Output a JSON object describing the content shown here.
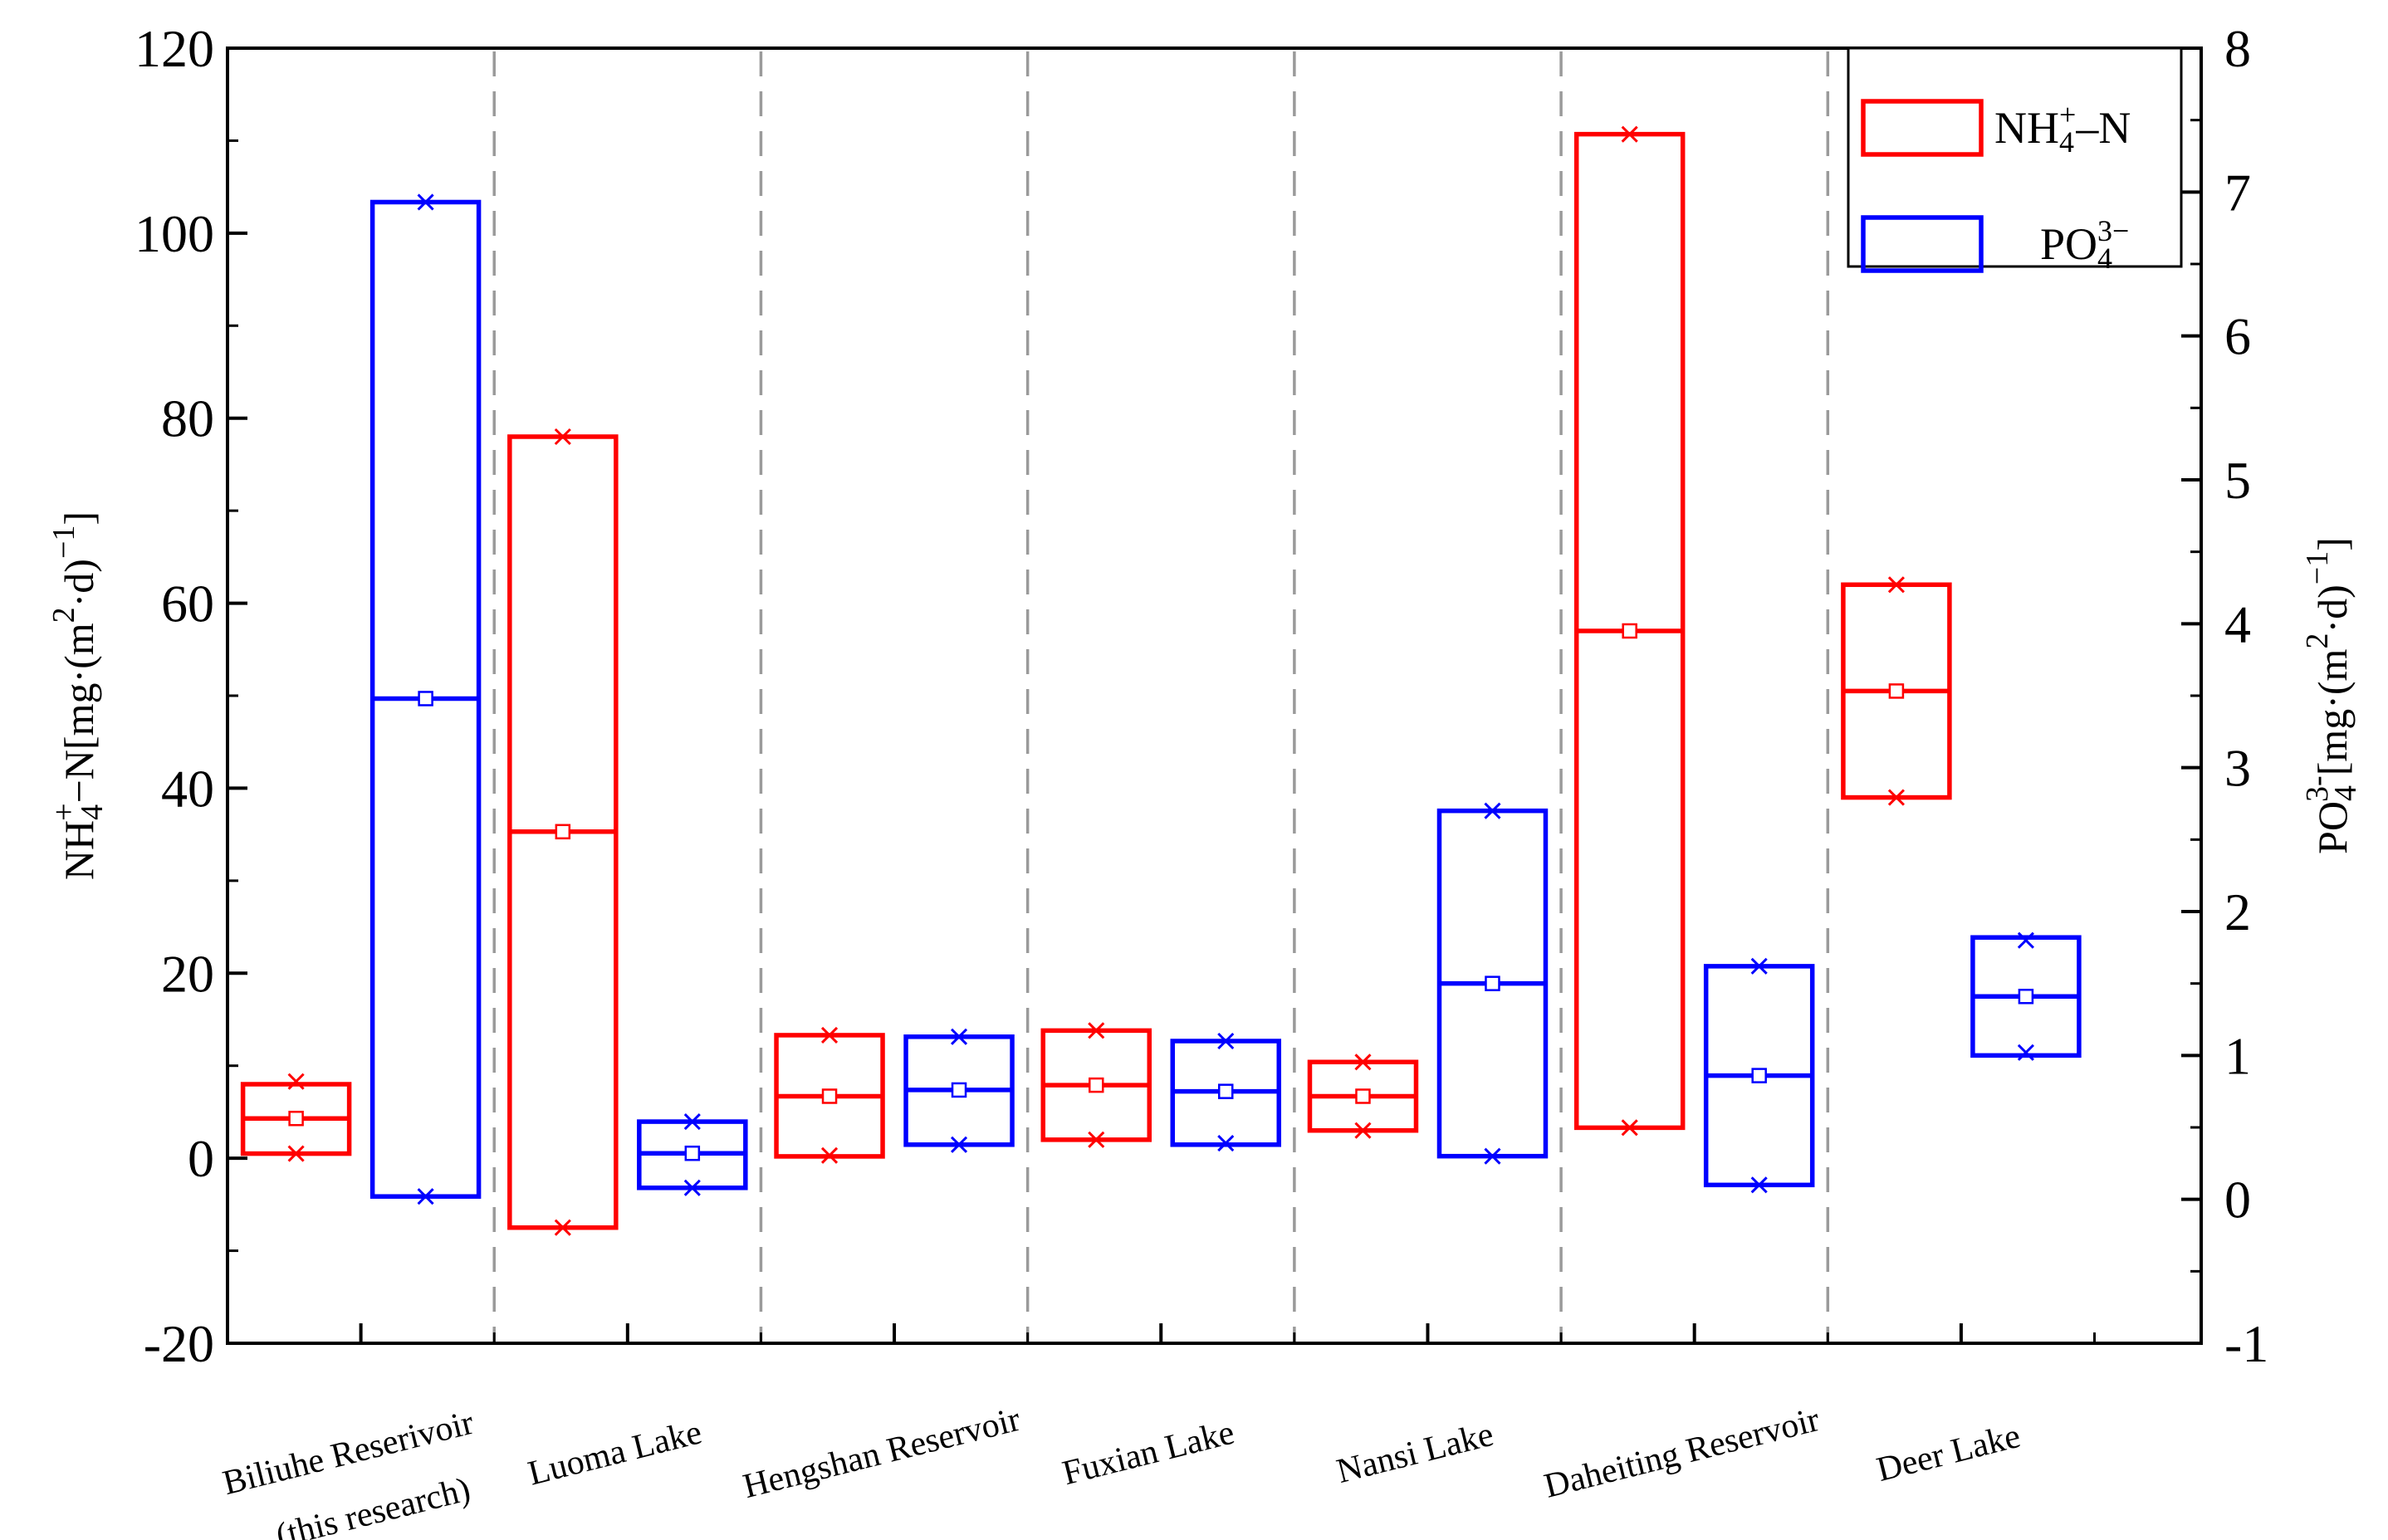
{
  "chart_data": {
    "type": "box",
    "description_note": "Floating range boxes with min (x), mean (square/line) and max (x) per site; NH4+-N on left axis, PO4 3- on right axis",
    "categories": [
      {
        "line1": "Biliuhe Reserivoir",
        "line2": "(this research)"
      },
      {
        "line1": "Luoma Lake",
        "line2": ""
      },
      {
        "line1": "Hengshan Reservoir",
        "line2": ""
      },
      {
        "line1": "Fuxian Lake",
        "line2": ""
      },
      {
        "line1": "Nansi Lake",
        "line2": ""
      },
      {
        "line1": "Daheiting Reservoir",
        "line2": ""
      },
      {
        "line1": "Deer Lake",
        "line2": ""
      }
    ],
    "left_axis": {
      "ylim": [
        -20,
        120
      ],
      "ticks": [
        -20,
        0,
        20,
        40,
        60,
        80,
        100,
        120
      ],
      "tick_labels": [
        "-20",
        "0",
        "20",
        "40",
        "60",
        "80",
        "100",
        "120"
      ],
      "title": {
        "base": "NH",
        "sub": "4",
        "sup": "+",
        "rest": "−N[mg·(m",
        "sup2": "2",
        "rest2": "·d)",
        "sup3": "−1",
        "end": "]"
      }
    },
    "right_axis": {
      "ylim": [
        -1,
        8
      ],
      "ticks": [
        -1,
        0,
        1,
        2,
        3,
        4,
        5,
        6,
        7,
        8
      ],
      "tick_labels": [
        "-1",
        "0",
        "1",
        "2",
        "3",
        "4",
        "5",
        "6",
        "7",
        "8"
      ],
      "title": {
        "base": "PO",
        "sub": "4",
        "sup": "3-",
        "rest": "[mg·(m",
        "sup2": "2",
        "rest2": "·d)",
        "sup3": "−1",
        "end": "]"
      }
    },
    "legend": {
      "position": "top-right",
      "entries": [
        {
          "name": "NH4+-N",
          "base": "NH",
          "sub": "4",
          "sup": "+",
          "tail": "–N"
        },
        {
          "name": "PO43-",
          "base": "PO",
          "sub": "4",
          "sup": "3−",
          "tail": ""
        }
      ]
    },
    "series": [
      {
        "name": "NH4+-N",
        "axis": "left",
        "color": "#ff0000",
        "boxes": [
          {
            "low": 0.5,
            "high": 8.0,
            "mean": 4.3,
            "min": 0.5,
            "max": 8.3
          },
          {
            "low": -7.5,
            "high": 78.0,
            "mean": 35.3,
            "min": -7.5,
            "max": 78.0
          },
          {
            "low": 0.2,
            "high": 13.3,
            "mean": 6.7,
            "min": 0.3,
            "max": 13.3
          },
          {
            "low": 2.0,
            "high": 13.8,
            "mean": 7.9,
            "min": 2.0,
            "max": 13.8
          },
          {
            "low": 3.0,
            "high": 10.4,
            "mean": 6.7,
            "min": 3.0,
            "max": 10.4
          },
          {
            "low": 3.3,
            "high": 110.7,
            "mean": 57.0,
            "min": 3.3,
            "max": 110.7
          },
          {
            "low": 39.0,
            "high": 62.0,
            "mean": 50.5,
            "min": 39.0,
            "max": 62.0
          }
        ]
      },
      {
        "name": "PO43-",
        "axis": "right",
        "color": "#0000ff",
        "boxes": [
          {
            "low": 0.02,
            "high": 6.93,
            "mean": 3.48,
            "min": 0.02,
            "max": 6.93
          },
          {
            "low": 0.08,
            "high": 0.54,
            "mean": 0.32,
            "min": 0.08,
            "max": 0.54
          },
          {
            "low": 0.38,
            "high": 1.13,
            "mean": 0.76,
            "min": 0.38,
            "max": 1.13
          },
          {
            "low": 0.38,
            "high": 1.1,
            "mean": 0.75,
            "min": 0.39,
            "max": 1.1
          },
          {
            "low": 0.3,
            "high": 2.7,
            "mean": 1.5,
            "min": 0.3,
            "max": 2.7
          },
          {
            "low": 0.1,
            "high": 1.62,
            "mean": 0.86,
            "min": 0.1,
            "max": 1.62
          },
          {
            "low": 1.0,
            "high": 1.82,
            "mean": 1.41,
            "min": 1.02,
            "max": 1.8
          }
        ]
      }
    ]
  }
}
